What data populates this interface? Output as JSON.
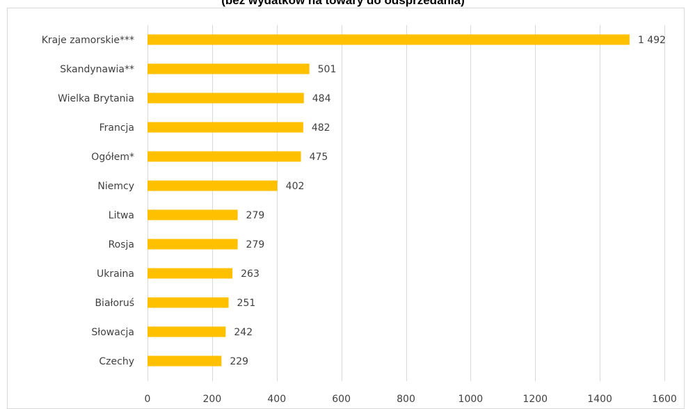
{
  "chart_data": {
    "type": "bar",
    "orientation": "horizontal",
    "title": "(bez wydatków na towary do odsprzedania)",
    "categories": [
      "Kraje zamorskie***",
      "Skandynawia**",
      "Wielka Brytania",
      "Francja",
      "Ogółem*",
      "Niemcy",
      "Litwa",
      "Rosja",
      "Ukraina",
      "Białoruś",
      "Słowacja",
      "Czechy"
    ],
    "values": [
      1492,
      501,
      484,
      482,
      475,
      402,
      279,
      279,
      263,
      251,
      242,
      229
    ],
    "value_labels": [
      "1 492",
      "501",
      "484",
      "482",
      "475",
      "402",
      "279",
      "279",
      "263",
      "251",
      "242",
      "229"
    ],
    "xlim": [
      0,
      1600
    ],
    "xticks": [
      0,
      200,
      400,
      600,
      800,
      1000,
      1200,
      1400,
      1600
    ],
    "grid": true,
    "bar_color": "#FFC000"
  }
}
